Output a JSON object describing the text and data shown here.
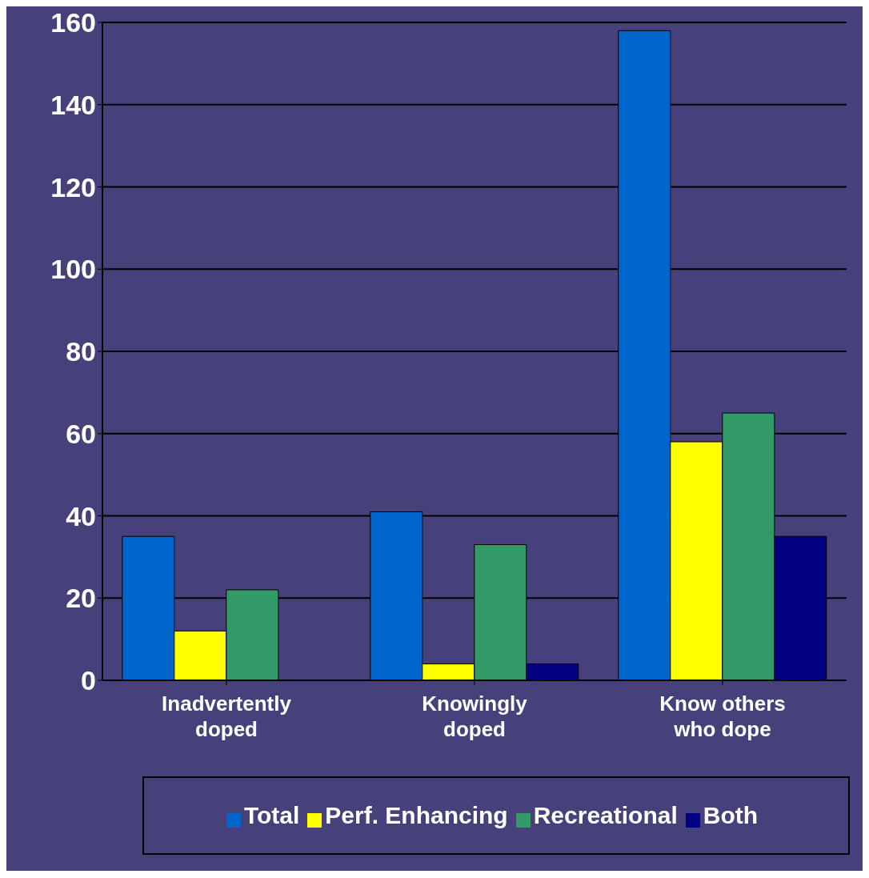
{
  "chart_data": {
    "type": "bar",
    "categories": [
      "Inadvertently doped",
      "Knowingly doped",
      "Know others who dope"
    ],
    "series": [
      {
        "name": "Total",
        "color": "#0066cc",
        "values": [
          35,
          41,
          158
        ]
      },
      {
        "name": "Perf. Enhancing",
        "color": "#ffff00",
        "values": [
          12,
          4,
          58
        ]
      },
      {
        "name": "Recreational",
        "color": "#339966",
        "values": [
          22,
          33,
          65
        ]
      },
      {
        "name": "Both",
        "color": "#000080",
        "values": [
          0,
          4,
          35
        ]
      }
    ],
    "ylim": [
      0,
      160
    ],
    "yticks": [
      0,
      20,
      40,
      60,
      80,
      100,
      120,
      140,
      160
    ],
    "grid": "y",
    "legend": "bottom"
  }
}
